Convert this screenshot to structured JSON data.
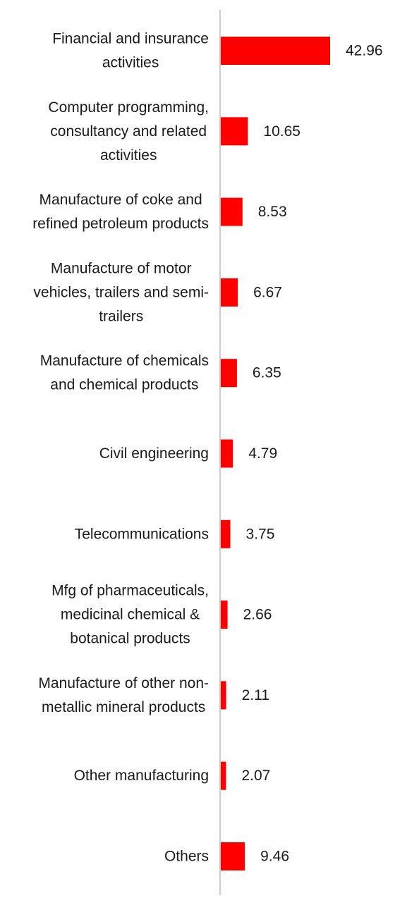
{
  "chart_data": {
    "type": "bar",
    "orientation": "horizontal",
    "title": "",
    "xlabel": "",
    "ylabel": "",
    "grid": false,
    "legend": "none",
    "bar_color": "#ff0000",
    "axis_color": "#cccccc",
    "xlim": [
      0,
      42.96
    ],
    "categories": [
      [
        "Financial and insurance",
        "activities"
      ],
      [
        "Computer programming,",
        "consultancy and related",
        "activities"
      ],
      [
        "Manufacture of coke and",
        "refined petroleum products"
      ],
      [
        "Manufacture of motor",
        "vehicles, trailers and semi-",
        "trailers"
      ],
      [
        "Manufacture of chemicals",
        "and chemical products"
      ],
      [
        "Civil engineering"
      ],
      [
        "Telecommunications"
      ],
      [
        "Mfg of pharmaceuticals,",
        "medicinal chemical &",
        "botanical products"
      ],
      [
        "Manufacture of other non-",
        "metallic mineral products"
      ],
      [
        "Other manufacturing"
      ],
      [
        "Others"
      ]
    ],
    "values": [
      42.96,
      10.65,
      8.53,
      6.67,
      6.35,
      4.79,
      3.75,
      2.66,
      2.11,
      2.07,
      9.46
    ],
    "value_labels": [
      "42.96",
      "10.65",
      "8.53",
      "6.67",
      "6.35",
      "4.79",
      "3.75",
      "2.66",
      "2.11",
      "2.07",
      "9.46"
    ]
  }
}
